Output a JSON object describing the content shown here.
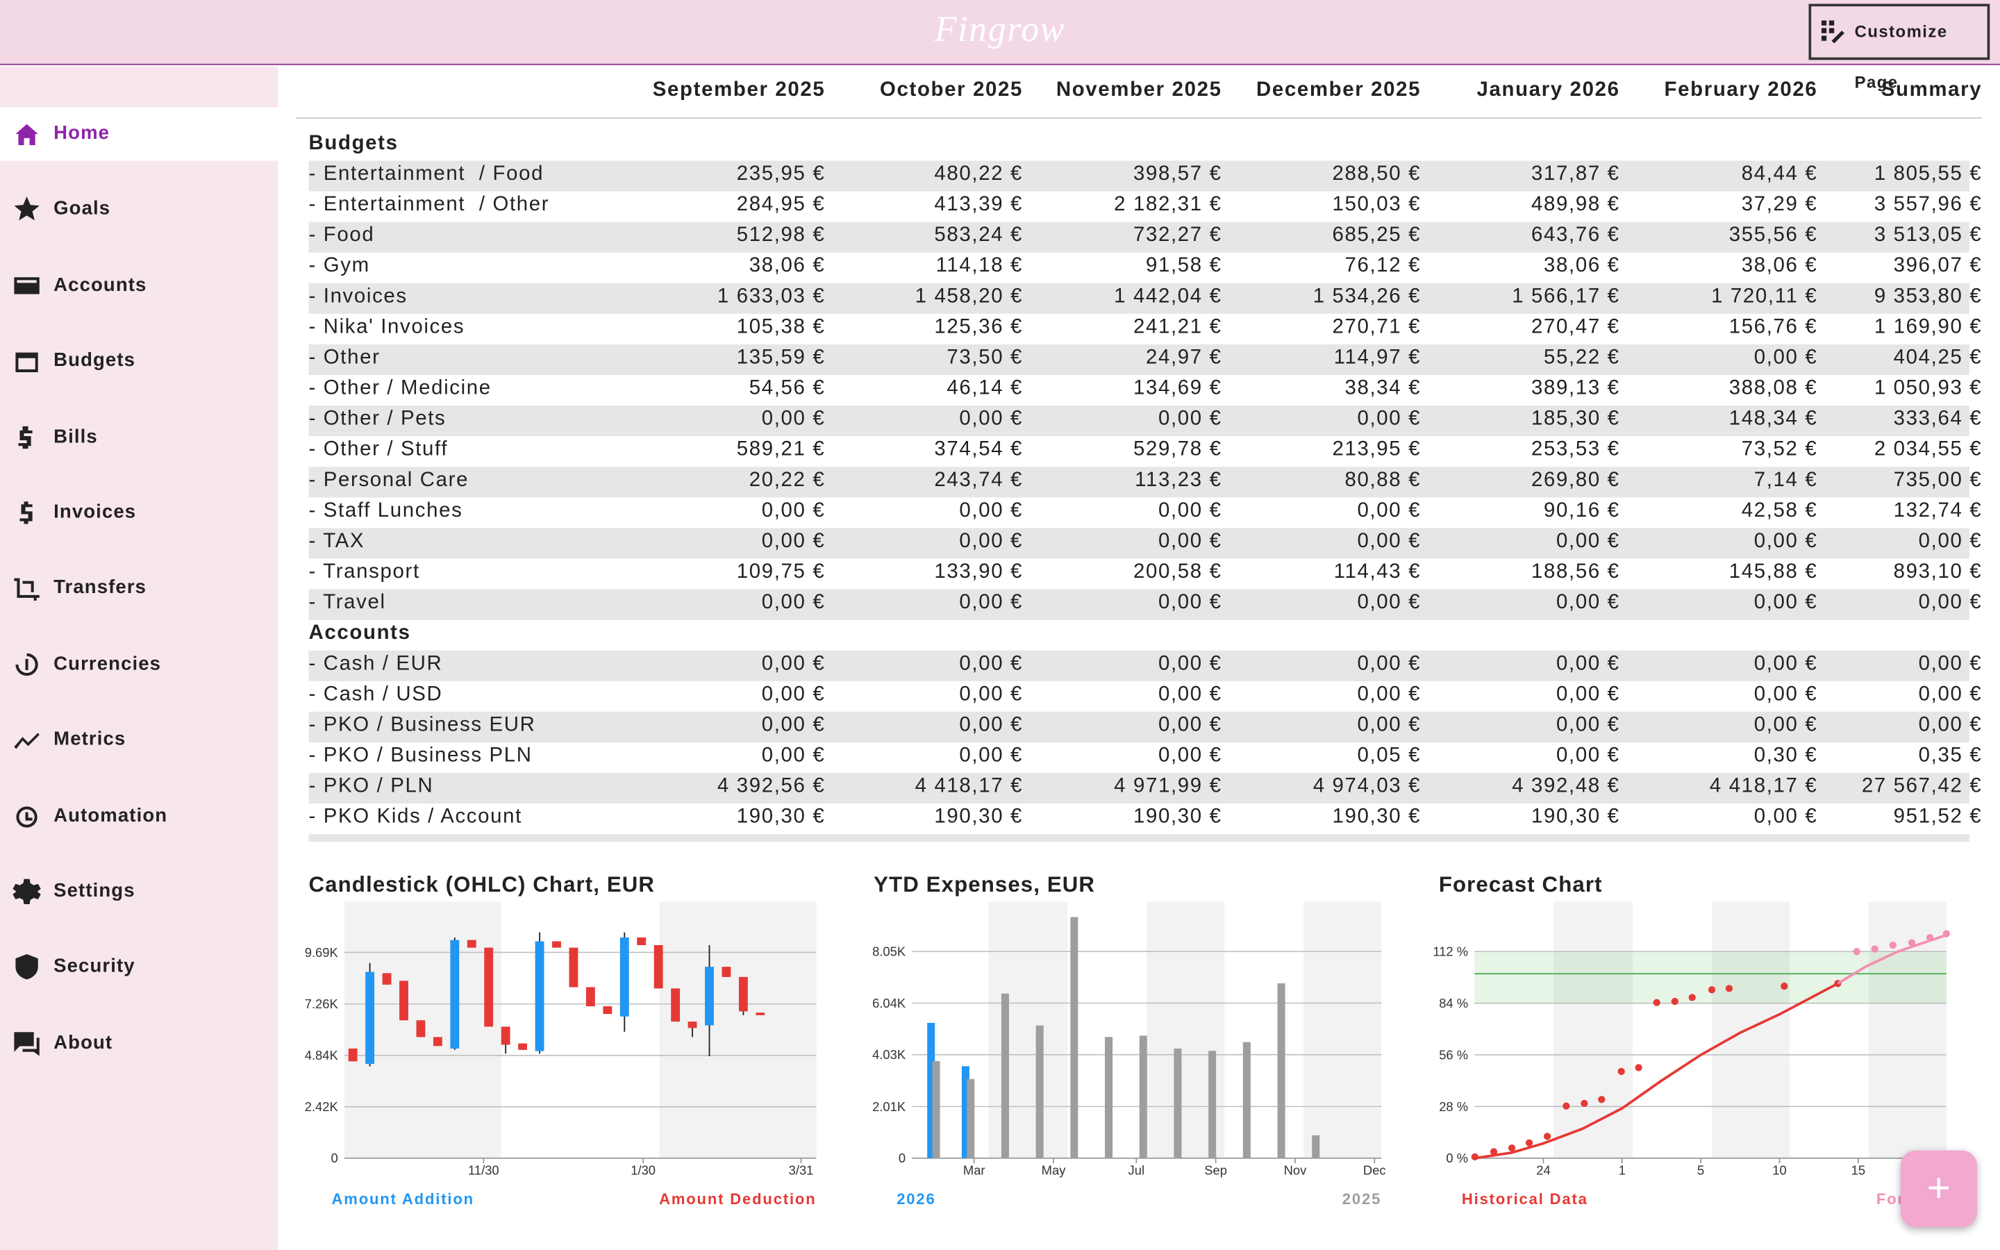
{
  "header": {
    "logo": "Fingrow",
    "customize": "Customize Page"
  },
  "nav": [
    {
      "label": "Home",
      "active": true
    },
    {
      "label": "Goals"
    },
    {
      "label": "Accounts"
    },
    {
      "label": "Budgets"
    },
    {
      "label": "Bills"
    },
    {
      "label": "Invoices"
    },
    {
      "label": "Transfers"
    },
    {
      "label": "Currencies"
    },
    {
      "label": "Metrics"
    },
    {
      "label": "Automation"
    },
    {
      "label": "Settings"
    },
    {
      "label": "Security"
    },
    {
      "label": "About"
    }
  ],
  "table": {
    "columns": [
      "September 2025",
      "October 2025",
      "November 2025",
      "December 2025",
      "January 2026",
      "February 2026",
      "Summary"
    ],
    "sections": [
      {
        "title": "Budgets",
        "rows": [
          [
            "- Entertainment  / Food",
            "235,95 €",
            "480,22 €",
            "398,57 €",
            "288,50 €",
            "317,87 €",
            "84,44 €",
            "1 805,55 €"
          ],
          [
            "- Entertainment  / Other",
            "284,95 €",
            "413,39 €",
            "2 182,31 €",
            "150,03 €",
            "489,98 €",
            "37,29 €",
            "3 557,96 €"
          ],
          [
            "- Food",
            "512,98 €",
            "583,24 €",
            "732,27 €",
            "685,25 €",
            "643,76 €",
            "355,56 €",
            "3 513,05 €"
          ],
          [
            "- Gym",
            "38,06 €",
            "114,18 €",
            "91,58 €",
            "76,12 €",
            "38,06 €",
            "38,06 €",
            "396,07 €"
          ],
          [
            "- Invoices",
            "1 633,03 €",
            "1 458,20 €",
            "1 442,04 €",
            "1 534,26 €",
            "1 566,17 €",
            "1 720,11 €",
            "9 353,80 €"
          ],
          [
            "- Nika' Invoices",
            "105,38 €",
            "125,36 €",
            "241,21 €",
            "270,71 €",
            "270,47 €",
            "156,76 €",
            "1 169,90 €"
          ],
          [
            "- Other",
            "135,59 €",
            "73,50 €",
            "24,97 €",
            "114,97 €",
            "55,22 €",
            "0,00 €",
            "404,25 €"
          ],
          [
            "- Other / Medicine",
            "54,56 €",
            "46,14 €",
            "134,69 €",
            "38,34 €",
            "389,13 €",
            "388,08 €",
            "1 050,93 €"
          ],
          [
            "- Other / Pets",
            "0,00 €",
            "0,00 €",
            "0,00 €",
            "0,00 €",
            "185,30 €",
            "148,34 €",
            "333,64 €"
          ],
          [
            "- Other / Stuff",
            "589,21 €",
            "374,54 €",
            "529,78 €",
            "213,95 €",
            "253,53 €",
            "73,52 €",
            "2 034,55 €"
          ],
          [
            "- Personal Care",
            "20,22 €",
            "243,74 €",
            "113,23 €",
            "80,88 €",
            "269,80 €",
            "7,14 €",
            "735,00 €"
          ],
          [
            "- Staff Lunches",
            "0,00 €",
            "0,00 €",
            "0,00 €",
            "0,00 €",
            "90,16 €",
            "42,58 €",
            "132,74 €"
          ],
          [
            "- TAX",
            "0,00 €",
            "0,00 €",
            "0,00 €",
            "0,00 €",
            "0,00 €",
            "0,00 €",
            "0,00 €"
          ],
          [
            "- Transport",
            "109,75 €",
            "133,90 €",
            "200,58 €",
            "114,43 €",
            "188,56 €",
            "145,88 €",
            "893,10 €"
          ],
          [
            "- Travel",
            "0,00 €",
            "0,00 €",
            "0,00 €",
            "0,00 €",
            "0,00 €",
            "0,00 €",
            "0,00 €"
          ]
        ]
      },
      {
        "title": "Accounts",
        "rows": [
          [
            "- Cash / EUR",
            "0,00 €",
            "0,00 €",
            "0,00 €",
            "0,00 €",
            "0,00 €",
            "0,00 €",
            "0,00 €"
          ],
          [
            "- Cash / USD",
            "0,00 €",
            "0,00 €",
            "0,00 €",
            "0,00 €",
            "0,00 €",
            "0,00 €",
            "0,00 €"
          ],
          [
            "- PKO / Business EUR",
            "0,00 €",
            "0,00 €",
            "0,00 €",
            "0,00 €",
            "0,00 €",
            "0,00 €",
            "0,00 €"
          ],
          [
            "- PKO / Business PLN",
            "0,00 €",
            "0,00 €",
            "0,00 €",
            "0,05 €",
            "0,00 €",
            "0,30 €",
            "0,35 €"
          ],
          [
            "- PKO / PLN",
            "4 392,56 €",
            "4 418,17 €",
            "4 971,99 €",
            "4 974,03 €",
            "4 392,48 €",
            "4 418,17 €",
            "27 567,42 €"
          ],
          [
            "- PKO Kids / Account",
            "190,30 €",
            "190,30 €",
            "190,30 €",
            "190,30 €",
            "190,30 €",
            "0,00 €",
            "951,52 €"
          ]
        ]
      }
    ]
  },
  "charts": [
    {
      "type": "candlestick",
      "title": "Candlestick (OHLC) Chart, EUR",
      "series": [
        {
          "name": "Amount Addition",
          "color": "#2196f3"
        },
        {
          "name": "Amount Deduction",
          "color": "#e53935"
        }
      ],
      "x": [
        0,
        1,
        2,
        3,
        4,
        5,
        6,
        7,
        8,
        9,
        10,
        11,
        12,
        13,
        14,
        15,
        16,
        17,
        18,
        19,
        20,
        21,
        22,
        23,
        24
      ],
      "open": [
        5160,
        4440,
        8710,
        8350,
        6490,
        5700,
        5160,
        10270,
        9910,
        6190,
        5400,
        5040,
        10210,
        9910,
        8050,
        7150,
        6670,
        10390,
        10030,
        7990,
        6430,
        6250,
        9010,
        8530,
        6850
      ],
      "high": [
        5160,
        9190,
        8710,
        8350,
        6490,
        5700,
        10390,
        10270,
        9910,
        6190,
        5400,
        10630,
        10210,
        9910,
        8050,
        7150,
        10630,
        10390,
        10030,
        7990,
        6430,
        10030,
        9010,
        8530,
        6850
      ],
      "low": [
        4560,
        4320,
        8170,
        6490,
        5700,
        5280,
        5100,
        9910,
        6190,
        4920,
        5100,
        4920,
        9910,
        8050,
        7150,
        6790,
        5950,
        10030,
        7990,
        6430,
        5700,
        4800,
        8530,
        6730,
        6730
      ],
      "close": [
        4560,
        8770,
        8170,
        6490,
        5700,
        5280,
        10270,
        9910,
        6190,
        5340,
        5100,
        10210,
        9910,
        8050,
        7150,
        6790,
        10390,
        10030,
        7990,
        6430,
        6130,
        9010,
        8530,
        6910,
        6730
      ],
      "xlim": [
        -0.5,
        27.3
      ],
      "xticks": [
        {
          "value": 7.7,
          "label": "11/30"
        },
        {
          "value": 17.1,
          "label": "1/30"
        },
        {
          "value": 26.4,
          "label": "3/31"
        }
      ],
      "ylim": [
        0,
        12070
      ],
      "yticks": [
        0,
        {
          "value": 2420,
          "label": "2.42K"
        },
        {
          "value": 4840,
          "label": "4.84K"
        },
        {
          "value": 7260,
          "label": "7.26K"
        },
        {
          "value": 9690,
          "label": "9.69K"
        }
      ],
      "grid": true
    },
    {
      "type": "bar",
      "title": "YTD Expenses, EUR",
      "x": [
        0,
        1,
        2,
        3,
        4,
        5,
        6,
        7,
        8,
        9,
        10,
        11
      ],
      "series": [
        {
          "name": "2026",
          "color": "#2196f3",
          "values": [
            5270,
            3580,
            null,
            null,
            null,
            null,
            null,
            null,
            null,
            null,
            null,
            null
          ]
        },
        {
          "name": "2025",
          "color": "#9e9e9e",
          "values": [
            3780,
            3080,
            6410,
            5170,
            9390,
            4720,
            4770,
            4270,
            4180,
            4520,
            6810,
            890
          ]
        }
      ],
      "xlim": [
        -0.7,
        12.9
      ],
      "xticks": [
        {
          "value": 1.1,
          "label": "Mar"
        },
        {
          "value": 3.4,
          "label": "May"
        },
        {
          "value": 5.8,
          "label": "Jul"
        },
        {
          "value": 8.1,
          "label": "Sep"
        },
        {
          "value": 10.4,
          "label": "Nov"
        },
        {
          "value": 12.7,
          "label": "Dec"
        }
      ],
      "ylim": [
        0,
        9985
      ],
      "yticks": [
        0,
        {
          "value": 2010,
          "label": "2.01K"
        },
        {
          "value": 4030,
          "label": "4.03K"
        },
        {
          "value": 6040,
          "label": "6.04K"
        },
        {
          "value": 8050,
          "label": "8.05K"
        }
      ],
      "grid": true
    },
    {
      "type": "scatter",
      "title": "Forecast Chart",
      "series": [
        {
          "name": "Historical Data",
          "color": "#e53935",
          "x": [
            0.13,
            0.37,
            0.6,
            0.82,
            1.05,
            1.29,
            1.52,
            1.74,
            1.99,
            2.21,
            2.44,
            2.67,
            2.89,
            3.14,
            3.36,
            4.06,
            4.74
          ],
          "values": [
            0.7,
            3.5,
            5.5,
            8.3,
            11.8,
            28.3,
            29.7,
            31.8,
            47.0,
            49.1,
            84.4,
            85.0,
            87.1,
            91.3,
            92.0,
            93.3,
            94.7
          ],
          "trend_x": [
            0.13,
            0.6,
            1.0,
            1.5,
            2.0,
            2.5,
            3.0,
            3.5,
            4.0,
            4.74
          ],
          "trend_values": [
            0,
            3,
            8,
            16,
            27,
            42,
            56,
            68,
            78,
            94.7
          ]
        },
        {
          "name": "Forecast",
          "color": "#f48fb1",
          "x": [
            4.98,
            5.21,
            5.44,
            5.68,
            5.91,
            6.12
          ],
          "values": [
            112.0,
            113.4,
            115.5,
            116.8,
            119.6,
            121.7
          ],
          "trend_x": [
            4.74,
            5.1,
            5.5,
            6.12
          ],
          "trend_values": [
            94.7,
            104,
            112,
            121
          ]
        }
      ],
      "band": [
        84,
        112
      ],
      "target": 100,
      "xlim": [
        0.125,
        6.12
      ],
      "xticks": [
        {
          "value": 1,
          "label": "24"
        },
        {
          "value": 2,
          "label": "1"
        },
        {
          "value": 3,
          "label": "5"
        },
        {
          "value": 4,
          "label": "10"
        },
        {
          "value": 5,
          "label": "15"
        }
      ],
      "ylim": [
        0,
        139
      ],
      "yticks": [
        {
          "value": 0,
          "label": "0 %"
        },
        {
          "value": 28,
          "label": "28 %"
        },
        {
          "value": 56,
          "label": "56 %"
        },
        {
          "value": 84,
          "label": "84 %"
        },
        {
          "value": 112,
          "label": "112 %"
        }
      ],
      "grid": true
    }
  ]
}
